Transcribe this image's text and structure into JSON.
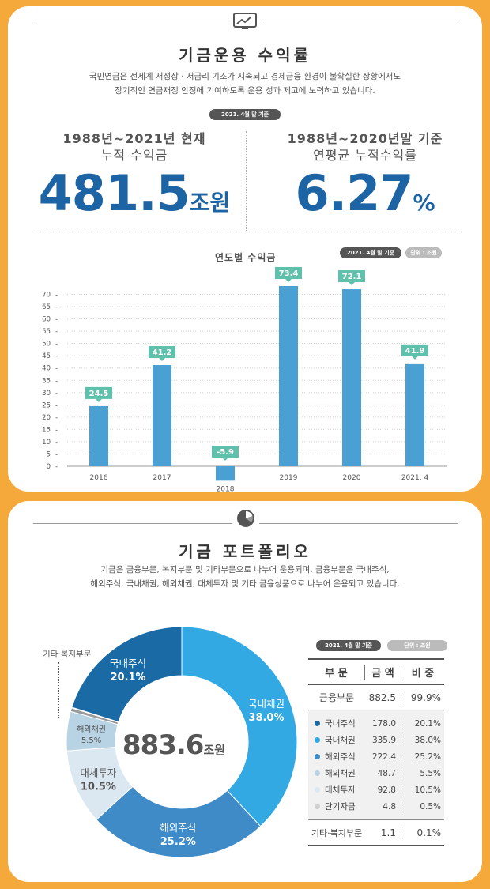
{
  "returns": {
    "title": "기금운용 수익률",
    "desc_line1": "국민연금은 전세계 저성장 · 저금리 기조가 지속되고 경제금융 환경이 불확실한 상황에서도",
    "desc_line2": "장기적인 연금재정 안정에 기여하도록 운용 성과 제고에 노력하고 있습니다.",
    "basis_badge": "2021. 4월 말 기준",
    "cumulative": {
      "heading": "1988년~2021년 현재",
      "label": "누적 수익금",
      "value": "481.5",
      "unit": "조원"
    },
    "annualized": {
      "heading": "1988년~2020년말 기준",
      "label": "연평균 누적수익률",
      "value": "6.27",
      "unit": "%"
    }
  },
  "chart_badges": {
    "basis": "2021. 4월 말 기준",
    "unit": "단위 : 조원"
  },
  "portfolio": {
    "title": "기금 포트폴리오",
    "desc_line1": "기금은 금융부문, 복지부문 및 기타부문으로 나누어 운용되며, 금융부문은 국내주식,",
    "desc_line2": "해외주식, 국내채권, 해외채권, 대체투자 및 기타 금융상품으로 나누어 운용되고 있습니다.",
    "total_value": "883.6",
    "total_unit": "조원",
    "other_welfare_callout": "기타·복지부문",
    "table": {
      "basis_badge": "2021. 4월 말 기준",
      "unit_badge": "단위 : 조원",
      "headers": [
        "부 문",
        "금 액",
        "비 중"
      ],
      "finance": {
        "name": "금융부문",
        "amount": "882.5",
        "share": "99.9%"
      },
      "rows": [
        {
          "name": "국내주식",
          "amount": "178.0",
          "share": "20.1%",
          "color": "#1a6aa5"
        },
        {
          "name": "국내채권",
          "amount": "335.9",
          "share": "38.0%",
          "color": "#33a9e3"
        },
        {
          "name": "해외주식",
          "amount": "222.4",
          "share": "25.2%",
          "color": "#3f8bc7"
        },
        {
          "name": "해외채권",
          "amount": "48.7",
          "share": "5.5%",
          "color": "#b8d3e4"
        },
        {
          "name": "대체투자",
          "amount": "92.8",
          "share": "10.5%",
          "color": "#dce8f1"
        },
        {
          "name": "단기자금",
          "amount": "4.8",
          "share": "0.5%",
          "color": "#d0d0d0"
        }
      ],
      "welfare": {
        "name": "기타·복지부문",
        "amount": "1.1",
        "share": "0.1%"
      }
    }
  },
  "chart_data": [
    {
      "type": "bar",
      "title": "연도별 수익금",
      "categories": [
        "2016",
        "2017",
        "2018",
        "2019",
        "2020",
        "2021. 4"
      ],
      "values": [
        24.5,
        41.2,
        -5.9,
        73.4,
        72.1,
        41.9
      ],
      "value_labels": [
        "24.5",
        "41.2",
        "-5.9",
        "73.4",
        "72.1",
        "41.9"
      ],
      "yticks": [
        0,
        5,
        10,
        15,
        20,
        25,
        30,
        35,
        40,
        45,
        50,
        55,
        60,
        65,
        70
      ],
      "ylim": [
        0,
        75
      ],
      "bar_color": "#4ba0d3",
      "label_color": "#5fc1ab"
    },
    {
      "type": "pie",
      "title": "기금 포트폴리오",
      "slices": [
        {
          "name": "국내채권",
          "label": "국내채권",
          "pct_label": "38.0%",
          "value": 38.0,
          "color": "#33a9e3",
          "text_color": "#ffffff"
        },
        {
          "name": "해외주식",
          "label": "해외주식",
          "pct_label": "25.2%",
          "value": 25.2,
          "color": "#3f8bc7",
          "text_color": "#ffffff"
        },
        {
          "name": "대체투자",
          "label": "대체투자",
          "pct_label": "10.5%",
          "value": 10.5,
          "color": "#dce8f1",
          "text_color": "#555555"
        },
        {
          "name": "해외채권",
          "label": "해외채권",
          "pct_label": "5.5%",
          "value": 5.5,
          "color": "#b8d3e4",
          "text_color": "#555555"
        },
        {
          "name": "단기자금",
          "label": "",
          "pct_label": "",
          "value": 0.5,
          "color": "#9a9a9a",
          "text_color": "#555555"
        },
        {
          "name": "기타·복지부문",
          "label": "",
          "pct_label": "",
          "value": 0.1,
          "color": "#333333",
          "text_color": "#555555"
        },
        {
          "name": "국내주식",
          "label": "국내주식",
          "pct_label": "20.1%",
          "value": 20.1,
          "color": "#1a6aa5",
          "text_color": "#ffffff"
        }
      ]
    }
  ]
}
